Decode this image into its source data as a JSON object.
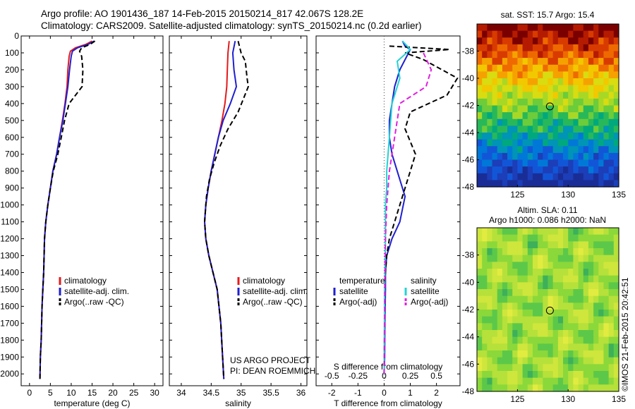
{
  "header": {
    "line1": "Argo profile: AO 1901436_187 14-Feb-2015 20150214_817 42.067S 128.2E",
    "line2": "Climatology: CARS2009. Satellite-adjusted climatology: synTS_20150214.nc (0.2d earlier)"
  },
  "colors": {
    "climatology": "#e41a1c",
    "satellite": "#1f1fd0",
    "argo": "#000000",
    "sal_satellite": "#22d3d3",
    "sal_argo": "#e020e0"
  },
  "chart_data": [
    {
      "type": "line",
      "xlabel": "temperature (deg C)",
      "ylabel": "",
      "xlim": [
        -2,
        32
      ],
      "ylim": [
        2070,
        0
      ],
      "xticks": [
        0,
        5,
        10,
        15,
        20,
        25,
        30
      ],
      "yticks": [
        0,
        100,
        200,
        300,
        400,
        500,
        600,
        700,
        800,
        900,
        1000,
        1100,
        1200,
        1300,
        1400,
        1500,
        1600,
        1700,
        1800,
        1900,
        2000
      ],
      "legend": [
        "climatology",
        "satellite-adj. clim.",
        "Argo(..raw -QC)"
      ],
      "legend_position": "lower-center",
      "series": [
        {
          "name": "climatology",
          "style": "solid",
          "x": [
            15.0,
            13.5,
            11.0,
            9.8,
            9.5,
            9.2,
            9.0,
            8.5,
            7.9,
            7.2,
            6.5,
            5.6,
            5.0,
            4.4,
            3.9,
            3.6,
            3.4,
            3.2,
            3.0,
            2.8,
            2.6,
            2.5
          ],
          "y": [
            30,
            50,
            70,
            90,
            120,
            200,
            300,
            400,
            500,
            600,
            700,
            800,
            900,
            1000,
            1100,
            1200,
            1400,
            1500,
            1600,
            1800,
            1900,
            2030
          ]
        },
        {
          "name": "satellite-adj. clim.",
          "style": "solid",
          "x": [
            15.5,
            14.0,
            11.5,
            10.3,
            10.0,
            9.6,
            9.2,
            8.6,
            8.0,
            7.2,
            6.5,
            5.6,
            5.0,
            4.4,
            3.9,
            3.6,
            3.4,
            3.2,
            3.0,
            2.8,
            2.6,
            2.5
          ],
          "y": [
            30,
            50,
            70,
            90,
            120,
            200,
            300,
            400,
            500,
            600,
            700,
            800,
            900,
            1000,
            1100,
            1200,
            1400,
            1500,
            1600,
            1800,
            1900,
            2030
          ]
        },
        {
          "name": "Argo(..raw -QC)",
          "style": "dashed",
          "x": [
            15.7,
            14.5,
            12.5,
            12.0,
            12.5,
            12.8,
            12.6,
            9.5,
            8.4,
            7.6,
            6.8,
            5.7,
            5.0,
            4.4,
            3.9,
            3.6,
            3.4,
            3.2,
            3.0,
            2.8,
            2.6,
            2.5
          ],
          "y": [
            30,
            50,
            70,
            90,
            120,
            200,
            300,
            400,
            500,
            600,
            700,
            800,
            900,
            1000,
            1100,
            1200,
            1400,
            1500,
            1600,
            1800,
            1900,
            2030
          ]
        }
      ]
    },
    {
      "type": "line",
      "xlabel": "salinity",
      "ylabel": "",
      "xlim": [
        33.8,
        36.1
      ],
      "ylim": [
        2070,
        0
      ],
      "xticks": [
        34,
        34.5,
        35,
        35.5,
        36
      ],
      "xticklabels": [
        "34",
        "34.5",
        "35",
        "35.5",
        "36"
      ],
      "legend": [
        "climatology",
        "satellite-adj. clim.",
        "Argo(..raw -QC)"
      ],
      "legend_position": "lower-right",
      "annotation": [
        "US ARGO PROJECT",
        "PI: DEAN ROEMMICH"
      ],
      "series": [
        {
          "name": "climatology",
          "style": "solid",
          "x": [
            34.8,
            34.78,
            34.77,
            34.76,
            34.73,
            34.68,
            34.62,
            34.56,
            34.5,
            34.45,
            34.41,
            34.39,
            34.41,
            34.46,
            34.53,
            34.6,
            34.66,
            34.69,
            34.71
          ],
          "y": [
            30,
            100,
            200,
            300,
            400,
            500,
            600,
            700,
            800,
            900,
            1000,
            1100,
            1200,
            1300,
            1400,
            1500,
            1700,
            1900,
            2030
          ]
        },
        {
          "name": "satellite-adj. clim.",
          "style": "solid",
          "x": [
            34.9,
            34.86,
            34.88,
            34.92,
            34.82,
            34.7,
            34.62,
            34.56,
            34.5,
            34.45,
            34.41,
            34.39,
            34.41,
            34.46,
            34.53,
            34.6,
            34.66,
            34.69,
            34.71
          ],
          "y": [
            30,
            100,
            200,
            300,
            400,
            500,
            600,
            700,
            800,
            900,
            1000,
            1100,
            1200,
            1300,
            1400,
            1500,
            1700,
            1900,
            2030
          ]
        },
        {
          "name": "Argo(..raw -QC)",
          "style": "dashed",
          "x": [
            34.95,
            35.0,
            35.07,
            35.1,
            35.12,
            34.95,
            34.78,
            34.65,
            34.55,
            34.47,
            34.42,
            34.39,
            34.41,
            34.46,
            34.53,
            34.6,
            34.66,
            34.69,
            34.71
          ],
          "y": [
            30,
            100,
            150,
            250,
            300,
            450,
            550,
            650,
            750,
            850,
            950,
            1100,
            1200,
            1300,
            1400,
            1500,
            1700,
            1900,
            2030
          ]
        }
      ]
    },
    {
      "type": "line",
      "xlabel": "T difference from climatology",
      "ylabel": "",
      "top_axis_label": "S difference from climatology",
      "xlim": [
        -2.6,
        2.9
      ],
      "ylim": [
        2070,
        0
      ],
      "xticks": [
        -2,
        -1,
        0,
        1,
        2
      ],
      "top_xticks": [
        -0.5,
        -0.25,
        0,
        0.25,
        0.5
      ],
      "legend_left_title": "temperature",
      "legend_right_title": "salinity",
      "legend": [
        "satellite",
        "Argo(-adj)",
        "satellite",
        "Argo(-adj)"
      ],
      "legend_position": "lower-center",
      "series": [
        {
          "name": "satellite",
          "group": "temperature",
          "style": "solid",
          "x": [
            0.7,
            0.8,
            1.0,
            0.6,
            0.4,
            0.3,
            0.2,
            0.2,
            0.3,
            0.5,
            0.8,
            0.6,
            0.3,
            0.1,
            0.05,
            0.05,
            0.03,
            0.02,
            0.0
          ],
          "y": [
            30,
            60,
            80,
            200,
            300,
            400,
            500,
            600,
            700,
            800,
            950,
            1100,
            1200,
            1300,
            1400,
            1500,
            1700,
            1900,
            2000
          ]
        },
        {
          "name": "Argo(-adj)",
          "group": "temperature",
          "style": "dashed",
          "x": [
            0.2,
            2.5,
            0.8,
            1.5,
            2.8,
            2.4,
            1.0,
            0.8,
            1.2,
            1.0,
            0.7,
            0.4,
            0.2,
            0.1,
            0.05,
            0.03,
            0.02,
            0.0
          ],
          "y": [
            60,
            80,
            100,
            140,
            250,
            350,
            450,
            550,
            700,
            800,
            950,
            1100,
            1200,
            1300,
            1400,
            1500,
            1700,
            2000
          ]
        },
        {
          "name": "satellite",
          "group": "salinity",
          "style": "solid",
          "x": [
            0.7,
            1.0,
            0.5,
            0.6,
            0.3,
            0.25,
            0.2,
            0.15,
            0.1,
            0.1,
            0.05,
            0.05,
            0.02,
            0.0
          ],
          "y": [
            30,
            80,
            150,
            250,
            400,
            500,
            600,
            700,
            800,
            900,
            1000,
            1200,
            1500,
            2000
          ]
        },
        {
          "name": "Argo(-adj)",
          "group": "salinity",
          "style": "dashed",
          "x": [
            1.5,
            1.8,
            1.6,
            0.6,
            0.5,
            0.4,
            0.3,
            0.2,
            0.1,
            0.05,
            0.03,
            0.0
          ],
          "y": [
            100,
            200,
            300,
            400,
            500,
            600,
            700,
            800,
            1000,
            1200,
            1500,
            2000
          ]
        }
      ]
    },
    {
      "type": "heatmap",
      "title": "sat. SST: 15.7 Argo: 15.4",
      "xlim": [
        121,
        135
      ],
      "ylim": [
        -48,
        -36
      ],
      "xticks": [
        125,
        130,
        135
      ],
      "yticks": [
        -38,
        -40,
        -42,
        -44,
        -46,
        -48
      ],
      "marker": {
        "lon": 128.2,
        "lat": -42.07
      }
    },
    {
      "type": "heatmap",
      "title_lines": [
        "Altim. SLA: 0.11",
        "Argo h1000: 0.086 h2000: NaN"
      ],
      "xlim": [
        121,
        135
      ],
      "ylim": [
        -48,
        -36
      ],
      "xticks": [
        125,
        130,
        135
      ],
      "yticks": [
        -38,
        -40,
        -42,
        -44,
        -46,
        -48
      ],
      "marker": {
        "lon": 128.2,
        "lat": -42.07
      }
    }
  ],
  "footer_stamp": "©IMOS 21-Feb-2015 20:42:51"
}
